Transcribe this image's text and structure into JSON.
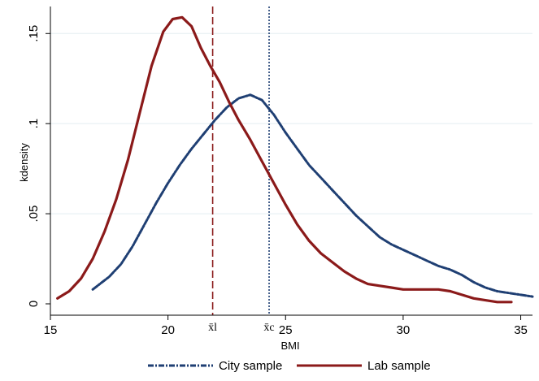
{
  "chart_data": {
    "type": "line",
    "title": "",
    "xlabel": "BMI",
    "ylabel": "kdensity",
    "xlim": [
      15,
      35.5
    ],
    "ylim": [
      0,
      0.165
    ],
    "x_ticks": [
      15,
      20,
      25,
      30,
      35
    ],
    "x_tick_labels": [
      "15",
      "20",
      "25",
      "30",
      "35"
    ],
    "y_ticks": [
      0,
      0.05,
      0.1,
      0.15
    ],
    "y_tick_labels": [
      "0",
      ".05",
      ".1",
      ".15"
    ],
    "grid": "horizontal",
    "legend_position": "bottom",
    "series": [
      {
        "name": "City sample",
        "color": "#1f3f73",
        "style": "dash-dot",
        "x": [
          16.8,
          17.5,
          18.0,
          18.5,
          19.0,
          19.5,
          20.0,
          20.5,
          21.0,
          21.5,
          22.0,
          22.5,
          23.0,
          23.5,
          24.0,
          24.5,
          25.0,
          25.5,
          26.0,
          26.5,
          27.0,
          27.5,
          28.0,
          28.5,
          29.0,
          29.5,
          30.0,
          30.5,
          31.0,
          31.5,
          32.0,
          32.5,
          33.0,
          33.5,
          34.0,
          34.5,
          35.0,
          35.5
        ],
        "y": [
          0.008,
          0.015,
          0.022,
          0.032,
          0.044,
          0.056,
          0.067,
          0.077,
          0.086,
          0.094,
          0.102,
          0.109,
          0.114,
          0.116,
          0.113,
          0.105,
          0.095,
          0.086,
          0.077,
          0.07,
          0.063,
          0.056,
          0.049,
          0.043,
          0.037,
          0.033,
          0.03,
          0.027,
          0.024,
          0.021,
          0.019,
          0.016,
          0.012,
          0.009,
          0.007,
          0.006,
          0.005,
          0.004
        ]
      },
      {
        "name": "Lab sample",
        "color": "#8b1a1a",
        "style": "solid",
        "x": [
          15.3,
          15.8,
          16.3,
          16.8,
          17.3,
          17.8,
          18.3,
          18.8,
          19.3,
          19.8,
          20.2,
          20.6,
          21.0,
          21.4,
          21.8,
          22.2,
          22.6,
          23.0,
          23.5,
          24.0,
          24.5,
          25.0,
          25.5,
          26.0,
          26.5,
          27.0,
          27.5,
          28.0,
          28.5,
          29.0,
          29.5,
          30.0,
          30.5,
          31.0,
          31.5,
          32.0,
          32.5,
          33.0,
          33.5,
          34.0,
          34.6
        ],
        "y": [
          0.003,
          0.007,
          0.014,
          0.025,
          0.04,
          0.058,
          0.08,
          0.106,
          0.132,
          0.151,
          0.158,
          0.159,
          0.154,
          0.142,
          0.132,
          0.123,
          0.112,
          0.102,
          0.091,
          0.079,
          0.067,
          0.055,
          0.044,
          0.035,
          0.028,
          0.023,
          0.018,
          0.014,
          0.011,
          0.01,
          0.009,
          0.008,
          0.008,
          0.008,
          0.008,
          0.007,
          0.005,
          0.003,
          0.002,
          0.001,
          0.001
        ]
      }
    ],
    "reference_lines": [
      {
        "label": "x̄l",
        "x": 21.9,
        "color": "#8b1a1a",
        "style": "long-dash"
      },
      {
        "label": "x̄c",
        "x": 24.3,
        "color": "#1f3f73",
        "style": "dotted"
      }
    ]
  }
}
